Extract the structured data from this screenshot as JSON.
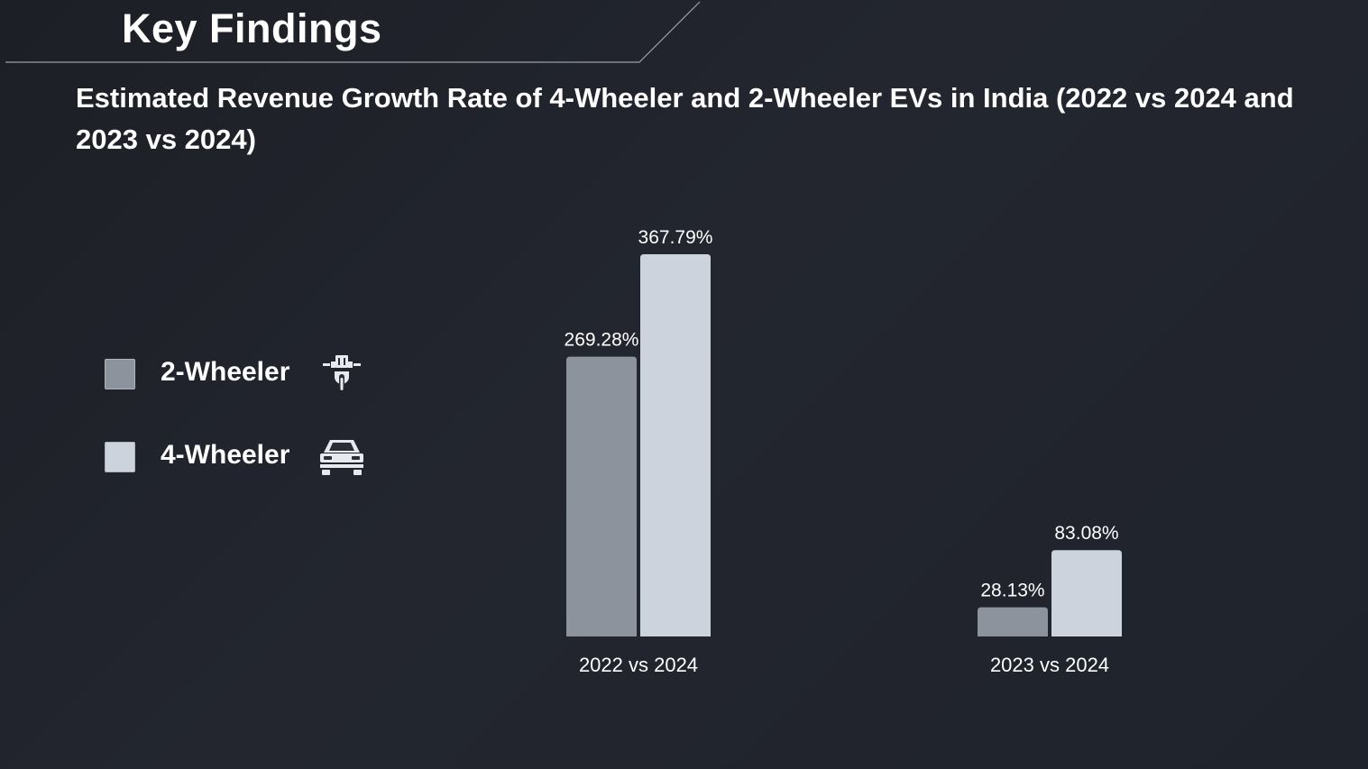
{
  "header": {
    "section_title": "Key Findings"
  },
  "chart_data": {
    "type": "bar",
    "title": "Estimated Revenue Growth Rate of 4-Wheeler and 2-Wheeler EVs in India (2022 vs 2024 and 2023 vs 2024)",
    "xlabel": "",
    "ylabel": "",
    "categories": [
      "2022 vs 2024",
      "2023 vs 2024"
    ],
    "series": [
      {
        "name": "2-Wheeler",
        "values": [
          269.28,
          28.13
        ],
        "labels": [
          "269.28%",
          "28.13%"
        ],
        "color": "#8c939c"
      },
      {
        "name": "4-Wheeler",
        "values": [
          367.79,
          83.08
        ],
        "labels": [
          "367.79%",
          "83.08%"
        ],
        "color": "#ccd3dc"
      }
    ],
    "ylim": [
      0,
      367.79
    ],
    "grid": false,
    "legend_position": "left",
    "legend": [
      {
        "label": "2-Wheeler",
        "icon": "scooter-icon",
        "color": "#8c939c"
      },
      {
        "label": "4-Wheeler",
        "icon": "car-icon",
        "color": "#ccd3dc"
      }
    ]
  }
}
